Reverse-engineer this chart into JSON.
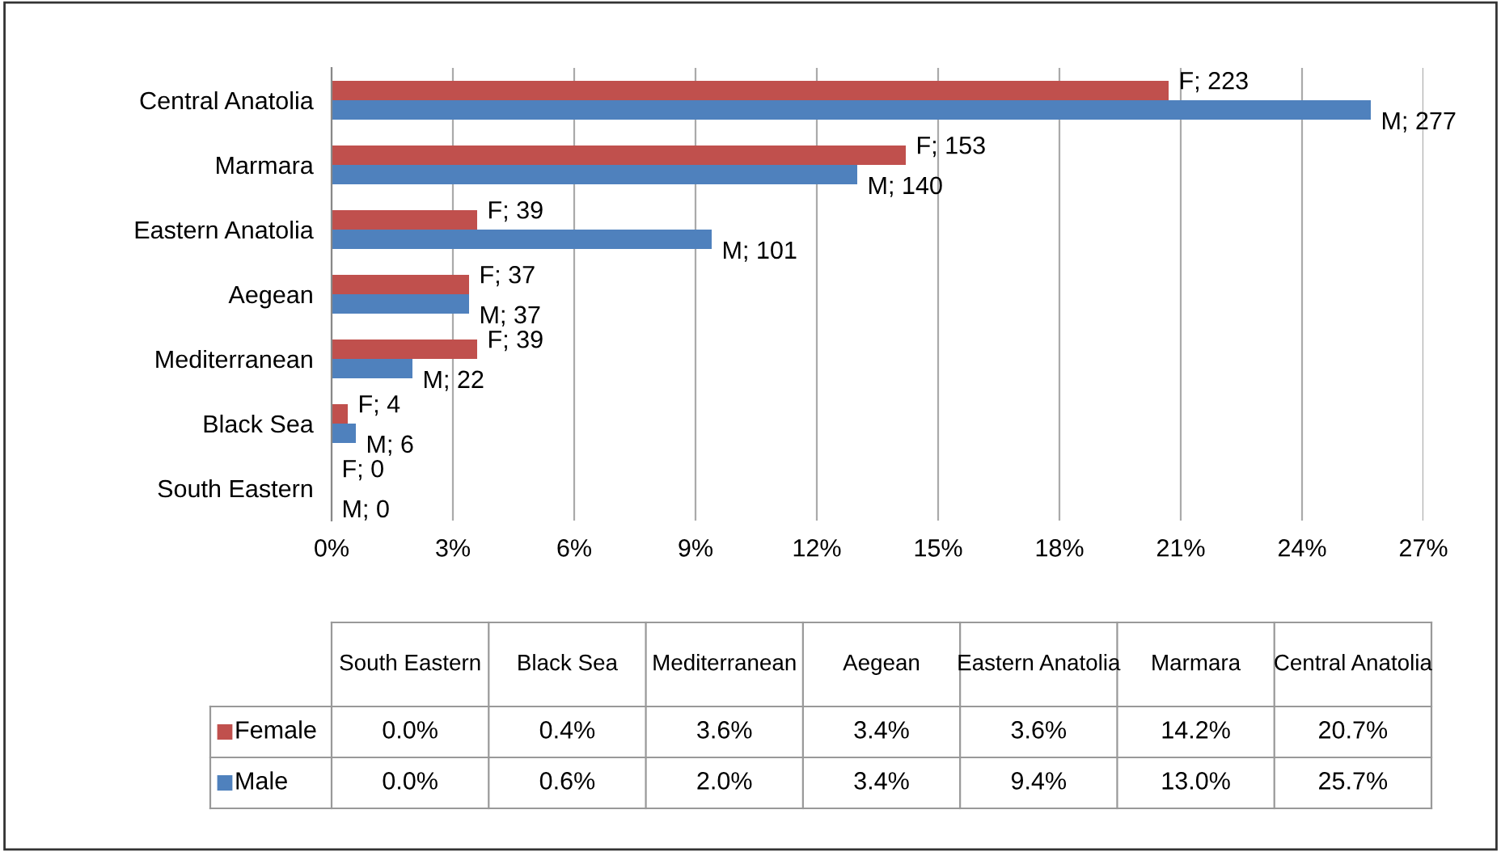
{
  "chart_data": [
    {
      "type": "bar",
      "orientation": "horizontal",
      "categories": [
        "Central Anatolia",
        "Marmara",
        "Eastern Anatolia",
        "Aegean",
        "Mediterranean",
        "Black Sea",
        "South Eastern"
      ],
      "series": [
        {
          "color": "#c0504d",
          "values": [
            20.7,
            14.2,
            3.6,
            3.4,
            3.6,
            0.4,
            0.0
          ]
        },
        {
          "color": "#4f81bd",
          "values": [
            25.7,
            13.0,
            9.4,
            3.4,
            2.0,
            0.6,
            0.0
          ]
        }
      ],
      "annotations": [
        {
          "text": "F; 223",
          "x": 20.7,
          "y": "Central Anatolia"
        },
        {
          "text": "M; 277",
          "x": 25.7,
          "y": "Central Anatolia"
        },
        {
          "text": "F; 153",
          "x": 14.2,
          "y": "Marmara"
        },
        {
          "text": "M; 140",
          "x": 13.0,
          "y": "Marmara"
        },
        {
          "text": "F; 39",
          "x": 3.6,
          "y": "Eastern Anatolia"
        },
        {
          "text": "M; 101",
          "x": 9.4,
          "y": "Eastern Anatolia"
        },
        {
          "text": "F; 37",
          "x": 3.4,
          "y": "Aegean"
        },
        {
          "text": "M; 37",
          "x": 3.4,
          "y": "Aegean"
        },
        {
          "text": "F; 39",
          "x": 3.6,
          "y": "Mediterranean"
        },
        {
          "text": "M; 22",
          "x": 2.0,
          "y": "Mediterranean"
        },
        {
          "text": "F; 4",
          "x": 0.4,
          "y": "Black Sea"
        },
        {
          "text": "M; 6",
          "x": 0.6,
          "y": "Black Sea"
        },
        {
          "text": "F; 0",
          "x": 0.0,
          "y": "South Eastern"
        },
        {
          "text": "M; 0",
          "x": 0.0,
          "y": "South Eastern"
        }
      ],
      "xlim": [
        0,
        27
      ],
      "xticks": [
        {
          "value": 0,
          "label": "0%"
        },
        {
          "value": 3,
          "label": "3%"
        },
        {
          "value": 6,
          "label": "6%"
        },
        {
          "value": 9,
          "label": "9%"
        },
        {
          "value": 12,
          "label": "12%"
        },
        {
          "value": 15,
          "label": "15%"
        },
        {
          "value": 18,
          "label": "18%"
        },
        {
          "value": 21,
          "label": "21%"
        },
        {
          "value": 24,
          "label": "24%"
        },
        {
          "value": 27,
          "label": "27%"
        }
      ],
      "grid": "x"
    },
    {
      "type": "other",
      "categories": [
        "South Eastern",
        "Black Sea",
        "Mediterranean",
        "Aegean",
        "Eastern Anatolia",
        "Marmara",
        "Central Anatolia"
      ],
      "series": [
        {
          "name": "Female",
          "color": "#c0504d",
          "values": [
            0.0,
            0.4,
            3.6,
            3.4,
            3.6,
            14.2,
            20.7
          ],
          "value_labels": [
            "0.0%",
            "0.4%",
            "3.6%",
            "3.4%",
            "3.6%",
            "14.2%",
            "20.7%"
          ]
        },
        {
          "name": "Male",
          "color": "#4f81bd",
          "values": [
            0.0,
            0.6,
            2.0,
            3.4,
            9.4,
            13.0,
            25.7
          ],
          "value_labels": [
            "0.0%",
            "0.6%",
            "2.0%",
            "3.4%",
            "9.4%",
            "13.0%",
            "25.7%"
          ]
        }
      ],
      "legend": "left"
    }
  ]
}
